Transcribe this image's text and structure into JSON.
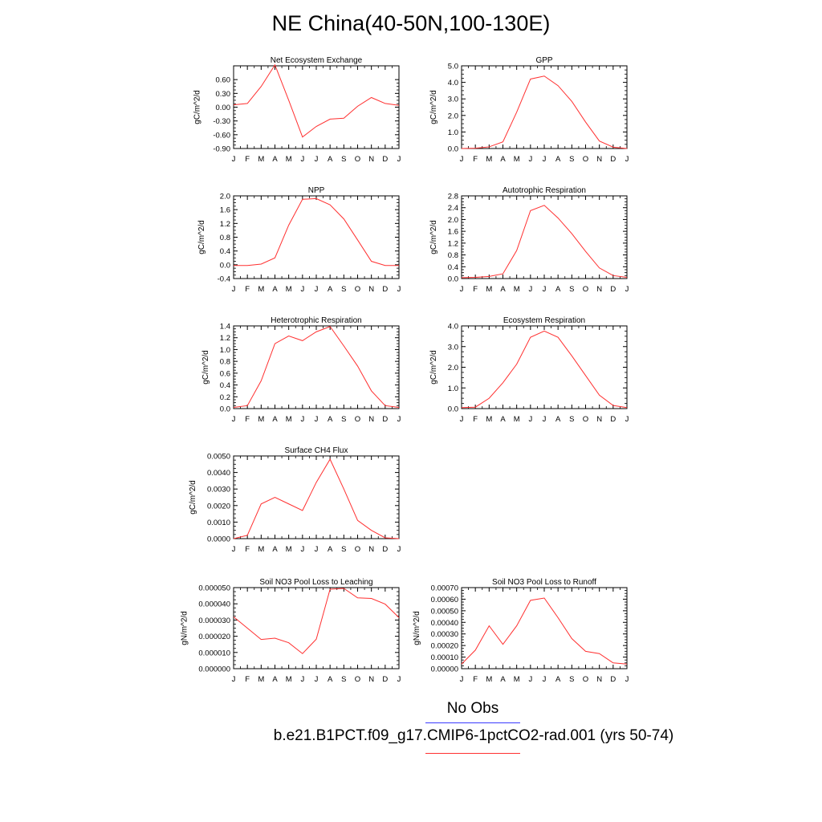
{
  "title": "NE China(40-50N,100-130E)",
  "legend": {
    "no_obs_label": "No Obs",
    "no_obs_color": "#3a3aff",
    "run_label": "b.e21.B1PCT.f09_g17.CMIP6-1pctCO2-rad.001 (yrs 50-74)",
    "run_color": "#ff3030"
  },
  "chart_data": [
    {
      "type": "line",
      "title": "Net Ecosystem Exchange",
      "ylabel": "gC/m^2/d",
      "categories": [
        "J",
        "F",
        "M",
        "A",
        "M",
        "J",
        "J",
        "A",
        "S",
        "O",
        "N",
        "D",
        "J"
      ],
      "ylim": [
        -0.9,
        0.9
      ],
      "yticks": [
        "-0.90",
        "-0.60",
        "-0.30",
        "0.00",
        "0.30",
        "0.60"
      ],
      "series": [
        {
          "values": [
            0.05,
            0.08,
            0.45,
            0.92,
            0.15,
            -0.65,
            -0.42,
            -0.26,
            -0.24,
            0.02,
            0.21,
            0.08,
            0.04
          ]
        }
      ]
    },
    {
      "type": "line",
      "title": "GPP",
      "ylabel": "gC/m^2/d",
      "categories": [
        "J",
        "F",
        "M",
        "A",
        "M",
        "J",
        "J",
        "A",
        "S",
        "O",
        "N",
        "D",
        "J"
      ],
      "ylim": [
        0,
        5
      ],
      "yticks": [
        "0.0",
        "1.0",
        "2.0",
        "3.0",
        "4.0",
        "5.0"
      ],
      "series": [
        {
          "values": [
            0.0,
            0.02,
            0.1,
            0.4,
            2.2,
            4.2,
            4.38,
            3.8,
            2.85,
            1.6,
            0.45,
            0.08,
            0.0
          ]
        }
      ]
    },
    {
      "type": "line",
      "title": "NPP",
      "ylabel": "gC/m^2/d",
      "categories": [
        "J",
        "F",
        "M",
        "A",
        "M",
        "J",
        "J",
        "A",
        "S",
        "O",
        "N",
        "D",
        "J"
      ],
      "ylim": [
        -0.4,
        2.0
      ],
      "yticks": [
        "-0.4",
        "0.0",
        "0.4",
        "0.8",
        "1.2",
        "1.6",
        "2.0"
      ],
      "series": [
        {
          "values": [
            -0.02,
            -0.02,
            0.02,
            0.2,
            1.15,
            1.9,
            1.92,
            1.74,
            1.33,
            0.72,
            0.1,
            -0.02,
            -0.02
          ]
        }
      ]
    },
    {
      "type": "line",
      "title": "Autotrophic Respiration",
      "ylabel": "gC/m^2/d",
      "categories": [
        "J",
        "F",
        "M",
        "A",
        "M",
        "J",
        "J",
        "A",
        "S",
        "O",
        "N",
        "D",
        "J"
      ],
      "ylim": [
        0,
        2.8
      ],
      "yticks": [
        "0.0",
        "0.4",
        "0.8",
        "1.2",
        "1.6",
        "2.0",
        "2.4",
        "2.8"
      ],
      "series": [
        {
          "values": [
            0.03,
            0.04,
            0.07,
            0.16,
            0.95,
            2.3,
            2.48,
            2.05,
            1.52,
            0.92,
            0.36,
            0.1,
            0.04
          ]
        }
      ]
    },
    {
      "type": "line",
      "title": "Heterotrophic Respiration",
      "ylabel": "gC/m^2/d",
      "categories": [
        "J",
        "F",
        "M",
        "A",
        "M",
        "J",
        "J",
        "A",
        "S",
        "O",
        "N",
        "D",
        "J"
      ],
      "ylim": [
        0,
        1.4
      ],
      "yticks": [
        "0.0",
        "0.2",
        "0.4",
        "0.6",
        "0.8",
        "1.0",
        "1.2",
        "1.4"
      ],
      "series": [
        {
          "values": [
            0.02,
            0.05,
            0.47,
            1.1,
            1.23,
            1.15,
            1.3,
            1.39,
            1.06,
            0.72,
            0.3,
            0.05,
            0.02
          ]
        }
      ]
    },
    {
      "type": "line",
      "title": "Ecosystem Respiration",
      "ylabel": "gC/m^2/d",
      "categories": [
        "J",
        "F",
        "M",
        "A",
        "M",
        "J",
        "J",
        "A",
        "S",
        "O",
        "N",
        "D",
        "J"
      ],
      "ylim": [
        0,
        4
      ],
      "yticks": [
        "0.0",
        "1.0",
        "2.0",
        "3.0",
        "4.0"
      ],
      "series": [
        {
          "values": [
            0.05,
            0.07,
            0.5,
            1.25,
            2.15,
            3.45,
            3.75,
            3.45,
            2.55,
            1.6,
            0.65,
            0.15,
            0.05
          ]
        }
      ]
    },
    {
      "type": "line",
      "title": "Surface CH4 Flux",
      "ylabel": "gC/m^2/d",
      "categories": [
        "J",
        "F",
        "M",
        "A",
        "M",
        "J",
        "J",
        "A",
        "S",
        "O",
        "N",
        "D",
        "J"
      ],
      "ylim": [
        0,
        0.005
      ],
      "yticks": [
        "0.0000",
        "0.0010",
        "0.0020",
        "0.0030",
        "0.0040",
        "0.0050"
      ],
      "series": [
        {
          "values": [
            0.0,
            0.0002,
            0.0021,
            0.0025,
            0.0021,
            0.0017,
            0.0034,
            0.0048,
            0.003,
            0.0011,
            0.0005,
            5e-05,
            0.0
          ]
        }
      ]
    },
    {
      "type": "line",
      "title": "Soil NO3 Pool Loss to Leaching",
      "ylabel": "gN/m^2/d",
      "categories": [
        "J",
        "F",
        "M",
        "A",
        "M",
        "J",
        "J",
        "A",
        "S",
        "O",
        "N",
        "D",
        "J"
      ],
      "ylim": [
        0,
        5e-05
      ],
      "yticks": [
        "0.000000",
        "0.000010",
        "0.000020",
        "0.000030",
        "0.000040",
        "0.000050"
      ],
      "series": [
        {
          "values": [
            3.2e-05,
            2.5e-05,
            1.8e-05,
            1.88e-05,
            1.6e-05,
            9.3e-06,
            1.82e-05,
            4.9e-05,
            4.95e-05,
            4.37e-05,
            4.33e-05,
            3.98e-05,
            3.15e-05
          ]
        }
      ]
    },
    {
      "type": "line",
      "title": "Soil NO3 Pool Loss to Runoff",
      "ylabel": "gN/m^2/d",
      "categories": [
        "J",
        "F",
        "M",
        "A",
        "M",
        "J",
        "J",
        "A",
        "S",
        "O",
        "N",
        "D",
        "J"
      ],
      "ylim": [
        0,
        0.0007
      ],
      "yticks": [
        "0.00000",
        "0.00010",
        "0.00020",
        "0.00030",
        "0.00040",
        "0.00050",
        "0.00060",
        "0.00070"
      ],
      "series": [
        {
          "values": [
            4e-05,
            0.00016,
            0.00037,
            0.00021,
            0.00037,
            0.00059,
            0.00061,
            0.00044,
            0.00026,
            0.00015,
            0.00013,
            5e-05,
            4e-05
          ]
        }
      ]
    }
  ]
}
